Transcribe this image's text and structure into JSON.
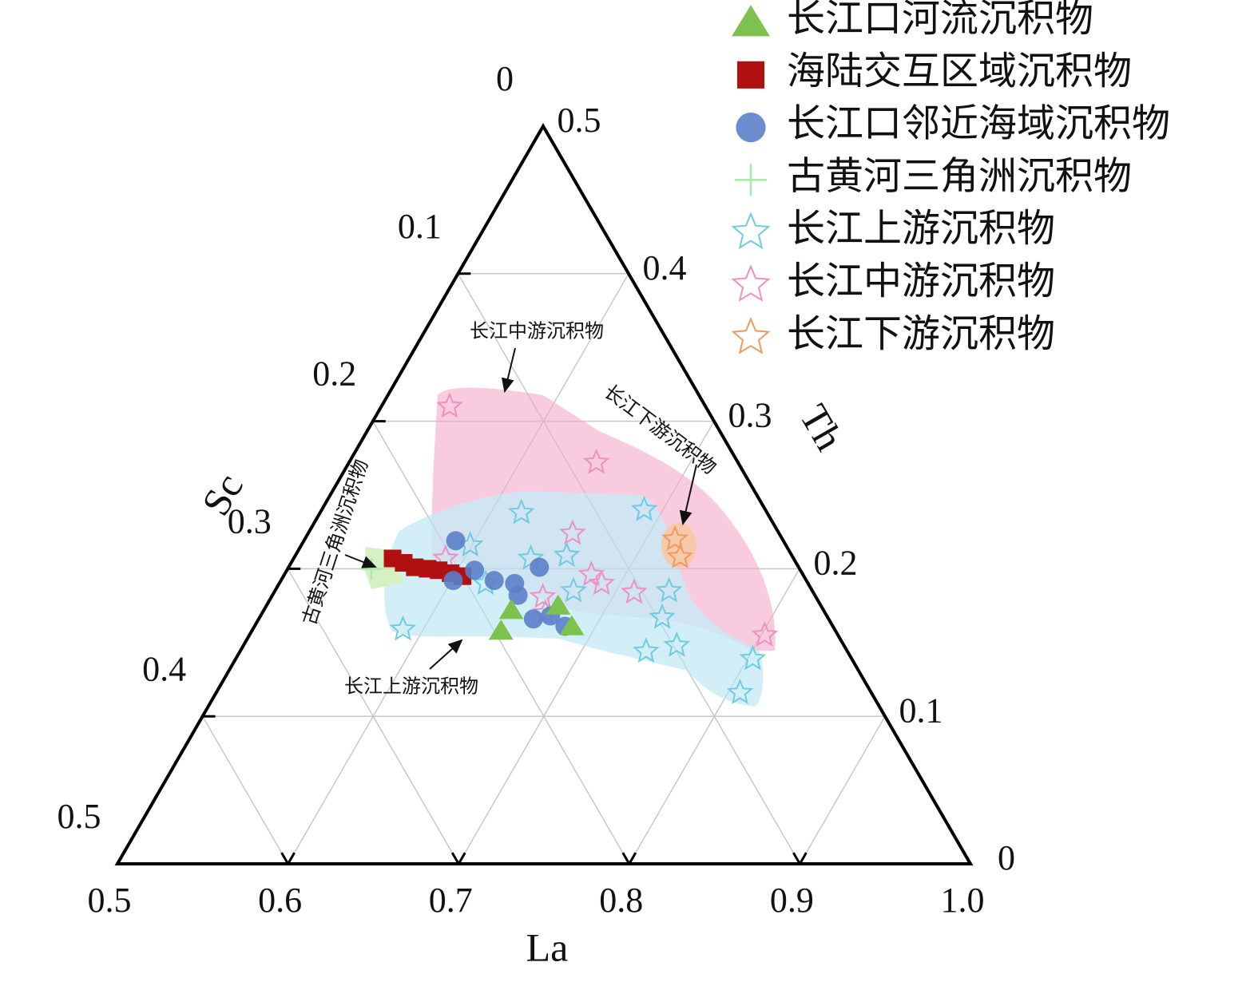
{
  "chart_data": {
    "type": "ternary",
    "la_axis": {
      "label": "La",
      "lim": [
        0.5,
        1
      ],
      "ticks": [
        0.5,
        0.6,
        0.7,
        0.8,
        0.9,
        {
          "value": 1,
          "label": "1.0"
        }
      ]
    },
    "sc_axis": {
      "label": "Sc",
      "lim": [
        0,
        0.5
      ],
      "ticks": [
        0,
        0.1,
        0.2,
        0.3,
        0.4,
        0.5
      ]
    },
    "th_axis": {
      "label": "Th",
      "lim": [
        0,
        0.5
      ],
      "ticks": [
        0,
        0.1,
        0.2,
        0.3,
        0.4,
        0.5
      ]
    },
    "grid": true,
    "legend": "top-right",
    "annotations": [
      "长江中游沉积物",
      "长江下游沉积物",
      "古黄河三角洲沉积物",
      "长江上游沉积物"
    ],
    "series": [
      {
        "name": "长江口河流沉积物",
        "marker": "triangle",
        "color": "#7dc14f",
        "points": [
          [
            0.646,
            0.196,
            0.158
          ],
          [
            0.645,
            0.183,
            0.172
          ],
          [
            0.671,
            0.154,
            0.175
          ],
          [
            0.686,
            0.153,
            0.161
          ]
        ]
      },
      {
        "name": "海陆交互区域沉积物",
        "marker": "square",
        "color": "#b01010",
        "points": [
          [
            0.558,
            0.235,
            0.207
          ],
          [
            0.566,
            0.23,
            0.204
          ],
          [
            0.574,
            0.225,
            0.201
          ],
          [
            0.582,
            0.218,
            0.2
          ],
          [
            0.589,
            0.212,
            0.199
          ],
          [
            0.597,
            0.206,
            0.197
          ],
          [
            0.605,
            0.2,
            0.195
          ]
        ]
      },
      {
        "name": "长江口邻近海域沉积物",
        "marker": "circle",
        "color": "#5b7fc9",
        "points": [
          [
            0.589,
            0.192,
            0.219
          ],
          [
            0.601,
            0.207,
            0.192
          ],
          [
            0.61,
            0.191,
            0.199
          ],
          [
            0.625,
            0.183,
            0.192
          ],
          [
            0.638,
            0.172,
            0.19
          ],
          [
            0.644,
            0.174,
            0.182
          ],
          [
            0.661,
            0.173,
            0.166
          ],
          [
            0.67,
            0.162,
            0.168
          ],
          [
            0.682,
            0.157,
            0.161
          ],
          [
            0.647,
            0.152,
            0.201
          ]
        ]
      },
      {
        "name": "古黄河三角洲沉积物",
        "marker": "plus",
        "color": "#a8e8a8",
        "points": [
          [
            0.549,
            0.251,
            0.2
          ]
        ]
      },
      {
        "name": "长江上游沉积物",
        "marker": "star",
        "color": "#6fcbe0",
        "points": [
          [
            0.588,
            0.253,
            0.159
          ],
          [
            0.618,
            0.144,
            0.238
          ],
          [
            0.639,
            0.154,
            0.207
          ],
          [
            0.659,
            0.132,
            0.209
          ],
          [
            0.675,
            0.14,
            0.185
          ],
          [
            0.689,
            0.071,
            0.24
          ],
          [
            0.731,
            0.084,
            0.185
          ],
          [
            0.736,
            0.097,
            0.167
          ],
          [
            0.754,
            0.098,
            0.148
          ],
          [
            0.738,
            0.118,
            0.144
          ],
          [
            0.803,
            0.058,
            0.139
          ],
          [
            0.807,
            0.077,
            0.116
          ],
          [
            0.599,
            0.185,
            0.216
          ],
          [
            0.621,
            0.189,
            0.19
          ]
        ]
      },
      {
        "name": "长江中游沉积物",
        "marker": "star",
        "color": "#ee90c0",
        "points": [
          [
            0.54,
            0.15,
            0.31
          ],
          [
            0.645,
            0.083,
            0.272
          ],
          [
            0.655,
            0.121,
            0.224
          ],
          [
            0.589,
            0.204,
            0.207
          ],
          [
            0.68,
            0.124,
            0.196
          ],
          [
            0.689,
            0.121,
            0.19
          ],
          [
            0.711,
            0.105,
            0.184
          ],
          [
            0.659,
            0.16,
            0.181
          ],
          [
            0.666,
            0.164,
            0.17
          ],
          [
            0.802,
            0.043,
            0.155
          ]
        ]
      },
      {
        "name": "长江下游沉积物",
        "marker": "star",
        "color": "#ee9a60",
        "points": [
          [
            0.717,
            0.063,
            0.22
          ],
          [
            0.726,
            0.066,
            0.208
          ]
        ]
      }
    ]
  }
}
